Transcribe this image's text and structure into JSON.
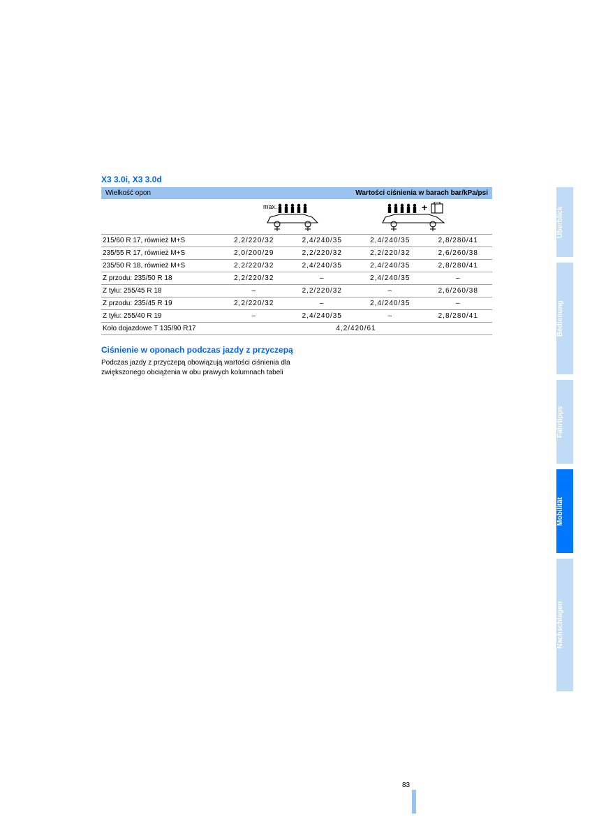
{
  "title": "X3 3.0i, X3 3.0d",
  "header": {
    "left": "Wielkość opon",
    "right": "Wartości ciśnienia w barach bar/kPa/psi"
  },
  "max_label": "max.",
  "rows": [
    {
      "tire": "215/60 R 17, również M+S",
      "v": [
        "2,2/220/32",
        "2,4/240/35",
        "2,4/240/35",
        "2,8/280/41"
      ]
    },
    {
      "tire": "235/55 R 17, również M+S",
      "v": [
        "2,0/200/29",
        "2,2/220/32",
        "2,2/220/32",
        "2,6/260/38"
      ]
    },
    {
      "tire": "235/50 R 18, również M+S",
      "v": [
        "2,2/220/32",
        "2,4/240/35",
        "2,4/240/35",
        "2,8/280/41"
      ]
    },
    {
      "tire": "Z przodu: 235/50 R 18",
      "v": [
        "2,2/220/32",
        "–",
        "2,4/240/35",
        "–"
      ]
    },
    {
      "tire": "Z tyłu: 255/45 R 18",
      "v": [
        "–",
        "2,2/220/32",
        "–",
        "2,6/260/38"
      ]
    },
    {
      "tire": "Z przodu: 235/45 R 19",
      "v": [
        "2,2/220/32",
        "–",
        "2,4/240/35",
        "–"
      ]
    },
    {
      "tire": "Z tyłu: 255/40 R 19",
      "v": [
        "–",
        "2,4/240/35",
        "–",
        "2,8/280/41"
      ]
    }
  ],
  "spare_row": {
    "tire": "Koło dojazdowe T 135/90 R17",
    "value": "4,2/420/61"
  },
  "sub_title": "Ciśnienie w oponach podczas jazdy z przyczepą",
  "body": "Podczas jazdy z przyczepą obowiązują wartości ciśnienia dla zwiększonego obciążenia w obu prawych kolumnach tabeli",
  "page_number": "83",
  "tabs": [
    {
      "label": "Überblick",
      "height": 100,
      "active": false
    },
    {
      "label": "Bedienung",
      "height": 160,
      "active": false
    },
    {
      "label": "Fahrtipps",
      "height": 120,
      "active": false
    },
    {
      "label": "Mobilität",
      "height": 120,
      "active": true
    },
    {
      "label": "Nachschlagen",
      "height": 190,
      "active": false
    }
  ],
  "colors": {
    "blue_accent": "#0066ee",
    "header_bg": "#99c2ee",
    "row_border": "#6fa8dc",
    "tab_inactive": "#c0dbf5",
    "tab_active": "#0077ff"
  }
}
